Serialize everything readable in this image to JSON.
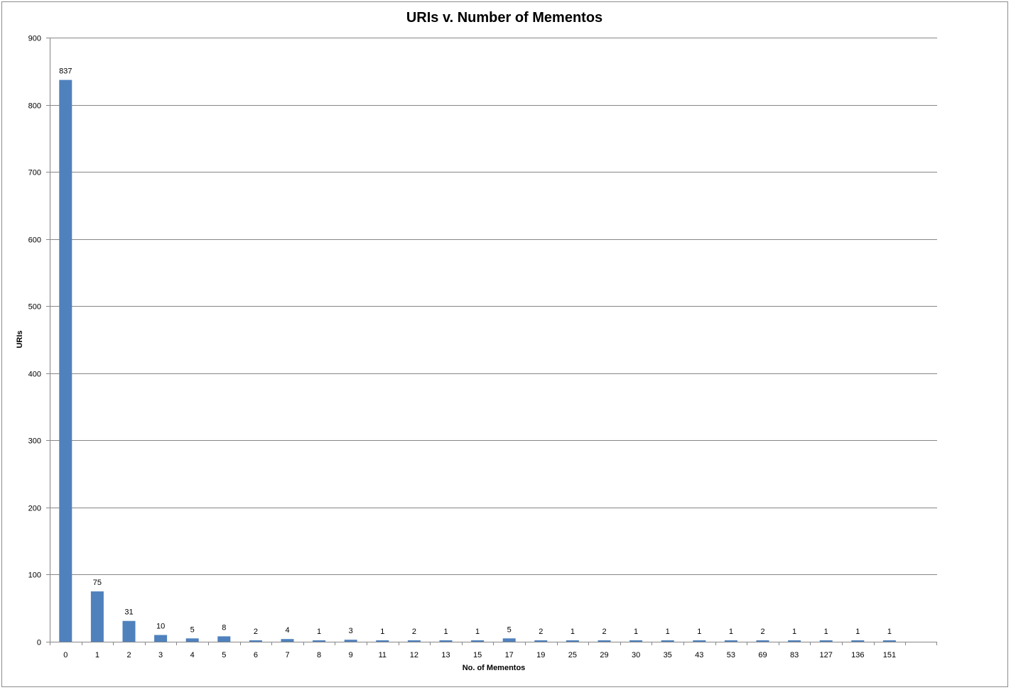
{
  "chart_data": {
    "type": "bar",
    "title": "URIs v. Number of Mementos",
    "xlabel": "No. of Mementos",
    "ylabel": "URIs",
    "ylim": [
      0,
      900
    ],
    "yticks": [
      0,
      100,
      200,
      300,
      400,
      500,
      600,
      700,
      800,
      900
    ],
    "grid": true,
    "legend": "none",
    "bar_color": "#4f81bd",
    "categories": [
      "0",
      "1",
      "2",
      "3",
      "4",
      "5",
      "6",
      "7",
      "8",
      "9",
      "11",
      "12",
      "13",
      "15",
      "17",
      "19",
      "25",
      "29",
      "30",
      "35",
      "43",
      "53",
      "69",
      "83",
      "127",
      "136",
      "151"
    ],
    "values": [
      837,
      75,
      31,
      10,
      5,
      8,
      2,
      4,
      1,
      3,
      1,
      2,
      1,
      1,
      5,
      2,
      1,
      2,
      1,
      1,
      1,
      1,
      2,
      1,
      1,
      1,
      1
    ],
    "data_labels": [
      "837",
      "75",
      "31",
      "10",
      "5",
      "8",
      "2",
      "4",
      "1",
      "3",
      "1",
      "2",
      "1",
      "1",
      "5",
      "2",
      "1",
      "2",
      "1",
      "1",
      "1",
      "1",
      "2",
      "1",
      "1",
      "1",
      "1"
    ]
  }
}
